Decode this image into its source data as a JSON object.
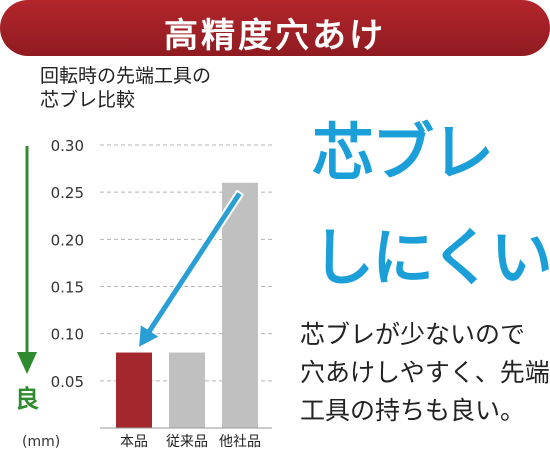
{
  "banner": {
    "title": "高精度穴あけ"
  },
  "chart_data": {
    "type": "bar",
    "title_lines": [
      "回転時の先端工具の",
      "芯ブレ比較"
    ],
    "categories": [
      "本品",
      "従来品",
      "他社品"
    ],
    "values": [
      0.08,
      0.08,
      0.26
    ],
    "bar_colors": [
      "#a3272c",
      "#c0c0c0",
      "#c0c0c0"
    ],
    "y_ticks": [
      "0.30",
      "0.25",
      "0.20",
      "0.15",
      "0.10",
      "0.05"
    ],
    "y_tick_values": [
      0.3,
      0.25,
      0.2,
      0.15,
      0.1,
      0.05
    ],
    "ylim": [
      0,
      0.3
    ],
    "unit_label": "(mm)",
    "better_label": "良",
    "better_direction": "down",
    "grid": true,
    "highlight_arrow": {
      "from_category": "他社品",
      "to_category": "本品"
    },
    "arrow_color": "#2a9fd6",
    "better_arrow_color": "#2e8b2e"
  },
  "headline": {
    "line1": "芯ブレ",
    "line2": "しにくい"
  },
  "description": {
    "line1": "芯ブレが少ないので",
    "line2": "穴あけしやすく、先端",
    "line3": "工具の持ちも良い。"
  }
}
